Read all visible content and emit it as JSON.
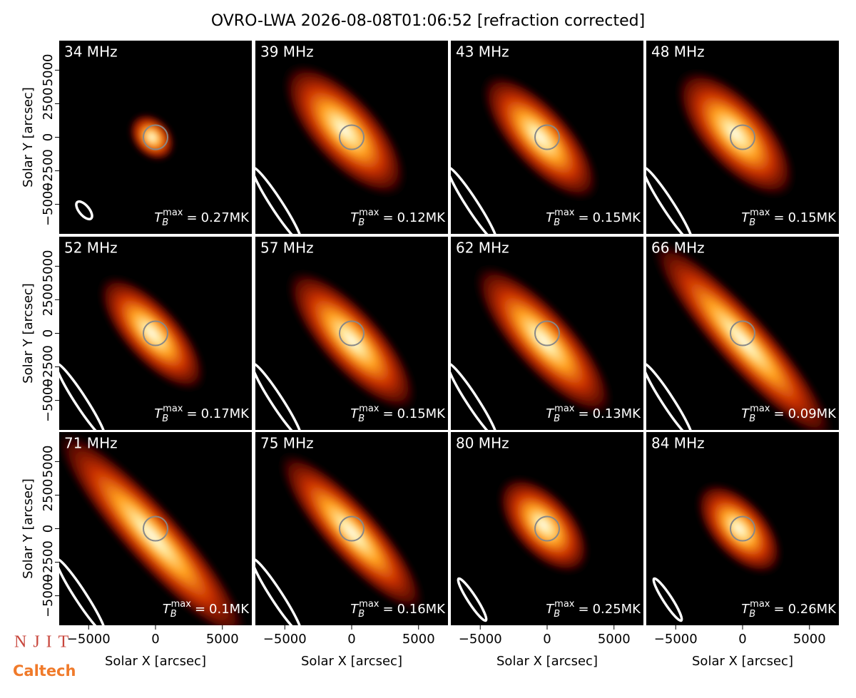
{
  "chart_data": {
    "type": "image_grid",
    "title": "OVRO-LWA 2026-08-08T01:06:52 [refraction corrected]",
    "xlabel": "Solar X [arcsec]",
    "ylabel": "Solar Y [arcsec]",
    "xlim": [
      -7200,
      7200
    ],
    "ylim": [
      -7200,
      7200
    ],
    "xticks": [
      {
        "value": -5000,
        "label": "−5000"
      },
      0,
      5000
    ],
    "yticks": [
      {
        "value": -5000,
        "label": "−5000"
      },
      {
        "value": -2500,
        "label": "−2500"
      },
      0,
      2500,
      5000
    ],
    "tmax_symbol": {
      "base": "T",
      "sub": "B",
      "sup": "max",
      "eq": "="
    },
    "panels": [
      {
        "frequency": "34 MHz",
        "tmax": "0.27MK"
      },
      {
        "frequency": "39 MHz",
        "tmax": "0.12MK"
      },
      {
        "frequency": "43 MHz",
        "tmax": "0.15MK"
      },
      {
        "frequency": "48 MHz",
        "tmax": "0.15MK"
      },
      {
        "frequency": "52 MHz",
        "tmax": "0.17MK"
      },
      {
        "frequency": "57 MHz",
        "tmax": "0.15MK"
      },
      {
        "frequency": "62 MHz",
        "tmax": "0.13MK"
      },
      {
        "frequency": "66 MHz",
        "tmax": "0.09MK"
      },
      {
        "frequency": "71 MHz",
        "tmax": "0.1MK"
      },
      {
        "frequency": "75 MHz",
        "tmax": "0.16MK"
      },
      {
        "frequency": "80 MHz",
        "tmax": "0.25MK"
      },
      {
        "frequency": "84 MHz",
        "tmax": "0.26MK"
      }
    ],
    "logos": [
      "NJIT",
      "Caltech"
    ]
  }
}
